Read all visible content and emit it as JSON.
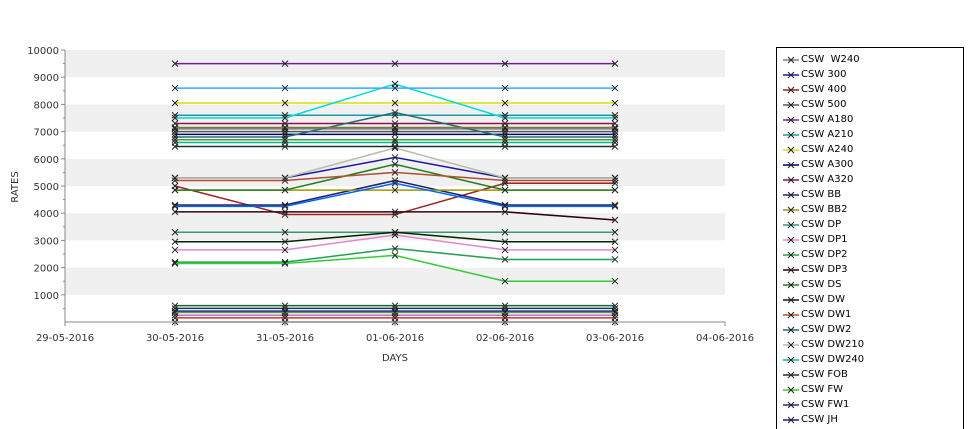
{
  "chart_data": {
    "type": "line",
    "title": "",
    "xlabel": "DAYS",
    "ylabel": "RATES",
    "x": [
      "29-05-2016",
      "30-05-2016",
      "31-05-2016",
      "01-06-2016",
      "02-06-2016",
      "03-06-2016",
      "04-06-2016"
    ],
    "ylim": [
      0,
      10000
    ],
    "yticks": [
      1000,
      2000,
      3000,
      4000,
      5000,
      6000,
      7000,
      8000,
      9000,
      10000
    ],
    "grid": "horizontal alternating bands",
    "legend_position": "right",
    "series": [
      {
        "name": "CSW  W240",
        "color": "#7f7f7f",
        "values": [
          null,
          7100,
          7100,
          7100,
          7100,
          7100,
          null
        ]
      },
      {
        "name": "CSW 300",
        "color": "#1a1aa0",
        "values": [
          null,
          5300,
          5300,
          6050,
          5300,
          5300,
          null
        ]
      },
      {
        "name": "CSW 400",
        "color": "#a02020",
        "values": [
          null,
          5000,
          3950,
          3950,
          5100,
          5100,
          null
        ]
      },
      {
        "name": "CSW 500",
        "color": "#555555",
        "values": [
          null,
          7000,
          7000,
          7000,
          7000,
          7000,
          null
        ]
      },
      {
        "name": "CSW A180",
        "color": "#702090",
        "values": [
          null,
          9500,
          9500,
          9500,
          9500,
          9500,
          null
        ]
      },
      {
        "name": "CSW A210",
        "color": "#1a9aaa",
        "values": [
          null,
          7600,
          7600,
          7600,
          7600,
          7600,
          null
        ]
      },
      {
        "name": "CSW A240",
        "color": "#dddd00",
        "values": [
          null,
          8050,
          8050,
          8050,
          8050,
          8050,
          null
        ]
      },
      {
        "name": "CSW A300",
        "color": "#000070",
        "values": [
          null,
          6900,
          6900,
          6900,
          6900,
          6900,
          null
        ]
      },
      {
        "name": "CSW A320",
        "color": "#901050",
        "values": [
          null,
          7300,
          7300,
          7300,
          7300,
          7300,
          null
        ]
      },
      {
        "name": "CSW BB",
        "color": "#222266",
        "values": [
          null,
          4300,
          4300,
          5200,
          4300,
          4300,
          null
        ]
      },
      {
        "name": "CSW BB2",
        "color": "#999900",
        "values": [
          null,
          4850,
          4850,
          4850,
          4850,
          4850,
          null
        ]
      },
      {
        "name": "CSW DP",
        "color": "#339977",
        "values": [
          null,
          3300,
          3300,
          3300,
          3300,
          3300,
          null
        ]
      },
      {
        "name": "CSW DP1",
        "color": "#dd88cc",
        "values": [
          null,
          2650,
          2650,
          3200,
          2650,
          2650,
          null
        ]
      },
      {
        "name": "CSW DP2",
        "color": "#20a050",
        "values": [
          null,
          2200,
          2200,
          2700,
          2300,
          2300,
          null
        ]
      },
      {
        "name": "CSW DP3",
        "color": "#300010",
        "values": [
          null,
          4050,
          4050,
          4050,
          4050,
          3750,
          null
        ]
      },
      {
        "name": "CSW DS",
        "color": "#208020",
        "values": [
          null,
          4850,
          4850,
          5800,
          4850,
          4850,
          null
        ]
      },
      {
        "name": "CSW DW",
        "color": "#002200",
        "values": [
          null,
          2950,
          2950,
          3300,
          2950,
          2950,
          null
        ]
      },
      {
        "name": "CSW DW1",
        "color": "#b05030",
        "values": [
          null,
          5200,
          5200,
          5500,
          5200,
          5200,
          null
        ]
      },
      {
        "name": "CSW DW2",
        "color": "#207070",
        "values": [
          null,
          6800,
          6800,
          7700,
          6800,
          6800,
          null
        ]
      },
      {
        "name": "CSW DW210",
        "color": "#bbbbaa",
        "values": [
          null,
          5300,
          5300,
          6400,
          5300,
          5300,
          null
        ]
      },
      {
        "name": "CSW DW240",
        "color": "#00bb88",
        "values": [
          null,
          6600,
          6600,
          6600,
          6600,
          6600,
          null
        ]
      },
      {
        "name": "CSW FOB",
        "color": "#203030",
        "values": [
          null,
          6450,
          6450,
          6450,
          6450,
          6450,
          null
        ]
      },
      {
        "name": "CSW FW",
        "color": "#33cc33",
        "values": [
          null,
          2150,
          2150,
          2450,
          1500,
          1500,
          null
        ]
      },
      {
        "name": "CSW FW1",
        "color": "#2a2a7a",
        "values": [
          null,
          500,
          500,
          500,
          500,
          500,
          null
        ]
      },
      {
        "name": "CSW JH",
        "color": "#1a1a8a",
        "values": [
          null,
          400,
          400,
          400,
          400,
          400,
          null
        ]
      },
      {
        "name": "",
        "color": "#00dddd",
        "values": [
          null,
          7500,
          7500,
          8750,
          7500,
          7500,
          null
        ]
      },
      {
        "name": "",
        "color": "#33aaff",
        "values": [
          null,
          8600,
          8600,
          8600,
          8600,
          8600,
          null
        ]
      },
      {
        "name": "",
        "color": "#0066ff",
        "values": [
          null,
          4250,
          4250,
          5100,
          4250,
          4250,
          null
        ]
      },
      {
        "name": "",
        "color": "#7a7a3a",
        "values": [
          null,
          7150,
          7150,
          7150,
          7150,
          7150,
          null
        ]
      },
      {
        "name": "",
        "color": "#449944",
        "values": [
          null,
          6700,
          6700,
          6700,
          6700,
          6700,
          null
        ]
      },
      {
        "name": "",
        "color": "#0a6a2a",
        "values": [
          null,
          600,
          600,
          600,
          600,
          600,
          null
        ]
      },
      {
        "name": "",
        "color": "#cc66cc",
        "values": [
          null,
          250,
          250,
          250,
          250,
          250,
          null
        ]
      },
      {
        "name": "",
        "color": "#cc3333",
        "values": [
          null,
          150,
          150,
          150,
          150,
          150,
          null
        ]
      },
      {
        "name": "",
        "color": "#44aa44",
        "values": [
          null,
          350,
          350,
          350,
          350,
          350,
          null
        ]
      },
      {
        "name": "",
        "color": "#888888",
        "values": [
          null,
          0,
          0,
          0,
          0,
          0,
          null
        ]
      }
    ]
  }
}
